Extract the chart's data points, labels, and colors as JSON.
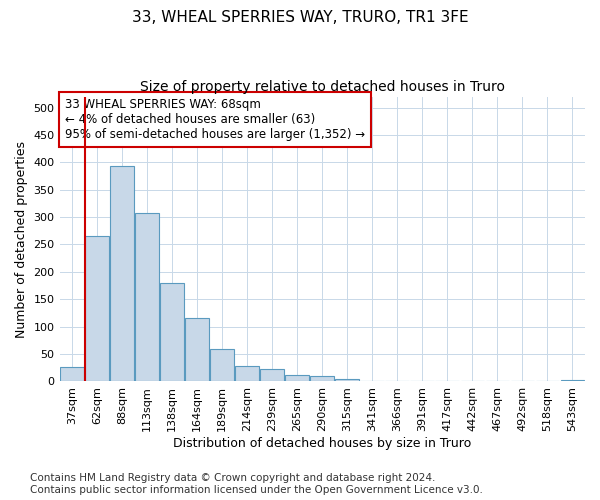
{
  "title": "33, WHEAL SPERRIES WAY, TRURO, TR1 3FE",
  "subtitle": "Size of property relative to detached houses in Truro",
  "xlabel": "Distribution of detached houses by size in Truro",
  "ylabel": "Number of detached properties",
  "bar_labels": [
    "37sqm",
    "62sqm",
    "88sqm",
    "113sqm",
    "138sqm",
    "164sqm",
    "189sqm",
    "214sqm",
    "239sqm",
    "265sqm",
    "290sqm",
    "315sqm",
    "341sqm",
    "366sqm",
    "391sqm",
    "417sqm",
    "442sqm",
    "467sqm",
    "492sqm",
    "518sqm",
    "543sqm"
  ],
  "bar_values": [
    27,
    265,
    393,
    308,
    179,
    115,
    59,
    29,
    23,
    12,
    10,
    5,
    1,
    1,
    1,
    0,
    0,
    0,
    0,
    0,
    3
  ],
  "bar_color": "#c8d8e8",
  "bar_edge_color": "#5a9abf",
  "vline_color": "#cc0000",
  "annotation_text": "33 WHEAL SPERRIES WAY: 68sqm\n← 4% of detached houses are smaller (63)\n95% of semi-detached houses are larger (1,352) →",
  "annotation_box_color": "#ffffff",
  "annotation_box_edge": "#cc0000",
  "ylim": [
    0,
    520
  ],
  "yticks": [
    0,
    50,
    100,
    150,
    200,
    250,
    300,
    350,
    400,
    450,
    500
  ],
  "footer_line1": "Contains HM Land Registry data © Crown copyright and database right 2024.",
  "footer_line2": "Contains public sector information licensed under the Open Government Licence v3.0.",
  "bg_color": "#ffffff",
  "grid_color": "#c8d8e8",
  "title_fontsize": 11,
  "subtitle_fontsize": 10,
  "axis_label_fontsize": 9,
  "tick_fontsize": 8,
  "annotation_fontsize": 8.5,
  "footer_fontsize": 7.5
}
